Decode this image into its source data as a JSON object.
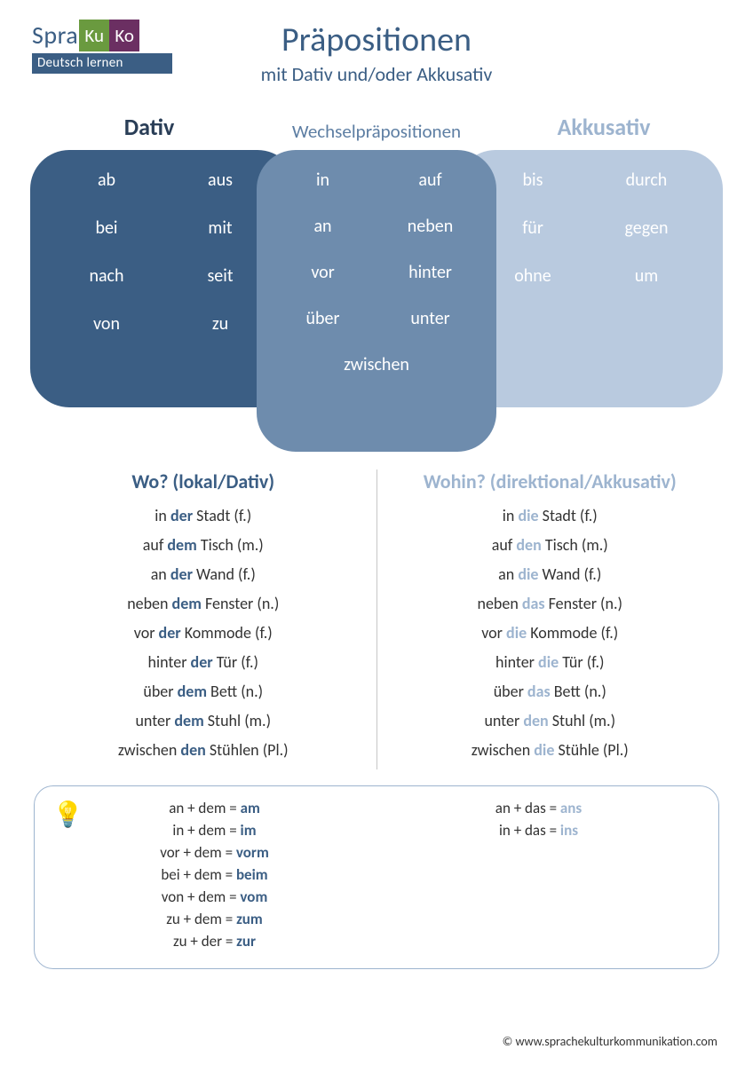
{
  "logo": {
    "spra": "Spra",
    "ku": "Ku",
    "ko": "Ko",
    "tag": "Deutsch lernen"
  },
  "title": "Präpositionen",
  "subtitle": "mit Dativ und/oder Akkusativ",
  "heads": {
    "dativ": "Dativ",
    "wechsel": "Wechselpräpositionen",
    "akk": "Akkusativ"
  },
  "venn": {
    "dativ": [
      [
        "ab",
        "aus"
      ],
      [
        "bei",
        "mit"
      ],
      [
        "nach",
        "seit"
      ],
      [
        "von",
        "zu"
      ]
    ],
    "wechsel": [
      [
        "in",
        "auf"
      ],
      [
        "an",
        "neben"
      ],
      [
        "vor",
        "hinter"
      ],
      [
        "über",
        "unter"
      ],
      [
        "zwischen"
      ]
    ],
    "akk": [
      [
        "bis",
        "durch"
      ],
      [
        "für",
        "gegen"
      ],
      [
        "ohne",
        "um"
      ]
    ]
  },
  "examples": {
    "wo": {
      "title": "Wo? (lokal/Dativ)",
      "lines": [
        {
          "pre": "in ",
          "art": "der",
          "post": " Stadt (f.)"
        },
        {
          "pre": "auf ",
          "art": "dem",
          "post": " Tisch (m.)"
        },
        {
          "pre": "an ",
          "art": "der",
          "post": " Wand (f.)"
        },
        {
          "pre": "neben ",
          "art": "dem",
          "post": " Fenster (n.)"
        },
        {
          "pre": "vor ",
          "art": "der",
          "post": " Kommode (f.)"
        },
        {
          "pre": "hinter ",
          "art": "der",
          "post": " Tür (f.)"
        },
        {
          "pre": "über ",
          "art": "dem",
          "post": " Bett (n.)"
        },
        {
          "pre": "unter ",
          "art": "dem",
          "post": " Stuhl (m.)"
        },
        {
          "pre": "zwischen ",
          "art": "den",
          "post": " Stühlen (Pl.)"
        }
      ]
    },
    "wohin": {
      "title": "Wohin? (direktional/Akkusativ)",
      "lines": [
        {
          "pre": "in ",
          "art": "die",
          "post": " Stadt (f.)"
        },
        {
          "pre": "auf ",
          "art": "den",
          "post": " Tisch (m.)"
        },
        {
          "pre": "an ",
          "art": "die",
          "post": " Wand (f.)"
        },
        {
          "pre": "neben ",
          "art": "das",
          "post": " Fenster (n.)"
        },
        {
          "pre": "vor ",
          "art": "die",
          "post": " Kommode (f.)"
        },
        {
          "pre": "hinter ",
          "art": "die",
          "post": " Tür (f.)"
        },
        {
          "pre": "über ",
          "art": "das",
          "post": " Bett (n.)"
        },
        {
          "pre": "unter ",
          "art": "den",
          "post": " Stuhl (m.)"
        },
        {
          "pre": "zwischen ",
          "art": "die",
          "post": " Stühle (Pl.)"
        }
      ]
    }
  },
  "tip": {
    "dativ": [
      {
        "lhs": "an + dem = ",
        "res": "am"
      },
      {
        "lhs": "in + dem = ",
        "res": "im"
      },
      {
        "lhs": "vor + dem = ",
        "res": "vorm"
      },
      {
        "lhs": "bei + dem = ",
        "res": "beim"
      },
      {
        "lhs": "von + dem = ",
        "res": "vom"
      },
      {
        "lhs": "zu + dem = ",
        "res": "zum"
      },
      {
        "lhs": "zu + der = ",
        "res": "zur"
      }
    ],
    "akk": [
      {
        "lhs": "an + das = ",
        "res": "ans"
      },
      {
        "lhs": "in + das = ",
        "res": "ins"
      }
    ]
  },
  "footer": "© www.sprachekulturkommunikation.com",
  "colors": {
    "dativ_dark": "#3b5e84",
    "wechsel_mid": "#6e8cad",
    "akk_light": "#b9cadf",
    "akk_text": "#9db4cf"
  }
}
